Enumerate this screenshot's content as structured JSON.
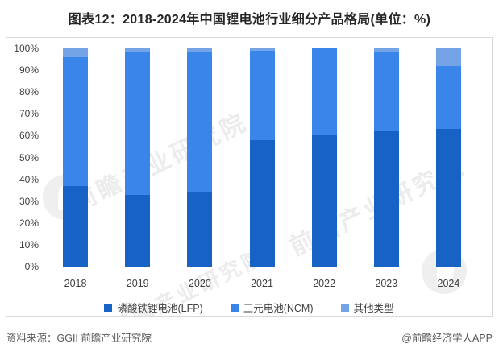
{
  "title": "图表12：2018-2024年中国锂电池行业细分产品格局(单位：%)",
  "watermark": {
    "text": "前瞻产业研究院"
  },
  "footer": {
    "source": "资料来源：GGII 前瞻产业研究院",
    "credit": "@前瞻经济学人APP"
  },
  "chart_data": {
    "type": "bar",
    "stacked": true,
    "title": "图表12：2018-2024年中国锂电池行业细分产品格局(单位：%)",
    "categories": [
      "2018",
      "2019",
      "2020",
      "2021",
      "2022",
      "2023",
      "2024"
    ],
    "series": [
      {
        "name": "磷酸铁锂电池(LFP)",
        "color": "#1763C5",
        "values": [
          37,
          33,
          34,
          58,
          60,
          62,
          63
        ]
      },
      {
        "name": "三元电池(NCM)",
        "color": "#3A85E9",
        "values": [
          59,
          65,
          64,
          41,
          40,
          36,
          29
        ]
      },
      {
        "name": "其他类型",
        "color": "#74A4E6",
        "values": [
          4,
          2,
          2,
          1,
          0,
          2,
          8
        ]
      }
    ],
    "xlabel": "",
    "ylabel": "",
    "ylim": [
      0,
      100
    ],
    "ytick_step": 10,
    "ytick_suffix": "%",
    "grid": false,
    "legend_position": "bottom"
  }
}
